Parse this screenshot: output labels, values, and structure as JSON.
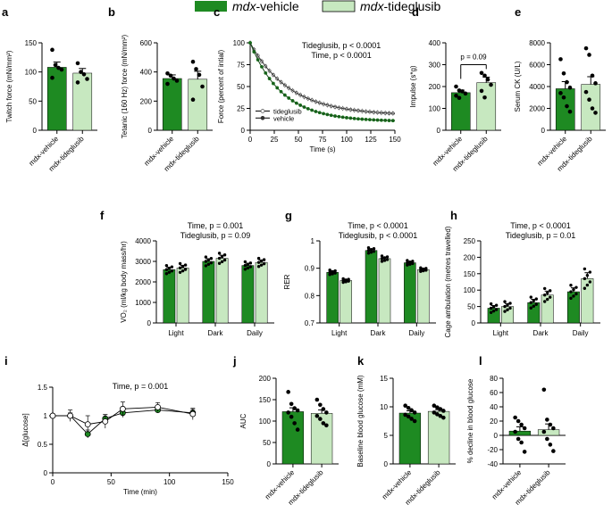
{
  "colors": {
    "vehicle": "#1e8a22",
    "tideglusib": "#c7e8c0",
    "dark_green": "#17731b",
    "axis": "#000000"
  },
  "legend": {
    "vehicle_prefix": "mdx",
    "vehicle_suffix": "-vehicle",
    "tideglusib_prefix": "mdx",
    "tideglusib_suffix": "-tideglusib"
  },
  "chart_data": [
    {
      "id": "a",
      "type": "bar",
      "panel_label": "a",
      "title": "",
      "ylabel": "Twitch force (mN/mm²)",
      "categories": [
        "mdx-vehicle",
        "mdx-tideglusib"
      ],
      "values": [
        108,
        98
      ],
      "errors": [
        9,
        8
      ],
      "ylim": [
        0,
        150
      ],
      "yticks": [
        0,
        50,
        100,
        150
      ],
      "points": [
        [
          138,
          112,
          107,
          104,
          90
        ],
        [
          115,
          100,
          96,
          88,
          82
        ]
      ]
    },
    {
      "id": "b",
      "type": "bar",
      "panel_label": "b",
      "title": "",
      "ylabel": "Tetanic (160 Hz) force (mN/mm²)",
      "categories": [
        "mdx-vehicle",
        "mdx-tideglusib"
      ],
      "values": [
        355,
        350
      ],
      "errors": [
        25,
        55
      ],
      "ylim": [
        0,
        600
      ],
      "yticks": [
        0,
        200,
        400,
        600
      ],
      "points": [
        [
          390,
          375,
          355,
          340,
          318
        ],
        [
          470,
          420,
          380,
          300,
          210
        ]
      ]
    },
    {
      "id": "c",
      "type": "line",
      "panel_label": "c",
      "title": "Tideglusib, p < 0.0001",
      "subtitle": "Time, p < 0.0001",
      "xlabel": "Time (s)",
      "ylabel": "Force (percent of intial)",
      "xlim": [
        0,
        150
      ],
      "ylim": [
        0,
        100
      ],
      "xticks": [
        0,
        25,
        50,
        75,
        100,
        125,
        150
      ],
      "yticks": [
        0,
        25,
        50,
        75,
        100
      ],
      "legend_position": "bottom-left",
      "series": [
        {
          "name": "tideglusib",
          "tau": 41,
          "floor": 17,
          "err": 2.8
        },
        {
          "name": "vehicle",
          "tau": 33,
          "floor": 10,
          "err": 1.5
        }
      ]
    },
    {
      "id": "d",
      "type": "bar",
      "panel_label": "d",
      "title": "",
      "ylabel": "Impulse (s*g)",
      "categories": [
        "mdx-vehicle",
        "mdx-tideglusib"
      ],
      "values": [
        172,
        218
      ],
      "errors": [
        12,
        25
      ],
      "ylim": [
        0,
        400
      ],
      "yticks": [
        0,
        100,
        200,
        300,
        400
      ],
      "points": [
        [
          200,
          182,
          178,
          168,
          158,
          148
        ],
        [
          262,
          250,
          232,
          208,
          180,
          150
        ]
      ],
      "annotation": "p = 0.09"
    },
    {
      "id": "e",
      "type": "bar",
      "panel_label": "e",
      "title": "",
      "ylabel": "Serum CK (U/L)",
      "categories": [
        "mdx-vehicle",
        "mdx-tideglusib"
      ],
      "values": [
        3800,
        4200
      ],
      "errors": [
        650,
        700
      ],
      "ylim": [
        0,
        8000
      ],
      "yticks": [
        0,
        2000,
        4000,
        6000,
        8000
      ],
      "points": [
        [
          6500,
          5200,
          4400,
          3900,
          3400,
          3000,
          2200,
          1700
        ],
        [
          7500,
          6900,
          5000,
          4300,
          3500,
          2800,
          2000,
          1600
        ]
      ]
    },
    {
      "id": "f",
      "type": "bar",
      "panel_label": "f",
      "title": "Time, p = 0.001",
      "subtitle": "Tideglusib, p = 0.09",
      "ylabel": "VO₂ (ml/kg body mass/hr)",
      "categories": [
        "Light",
        "Dark",
        "Daily"
      ],
      "series": [
        {
          "name": "mdx-vehicle",
          "values": [
            2600,
            3000,
            2800
          ],
          "errors": [
            120,
            130,
            110
          ]
        },
        {
          "name": "mdx-tideglusib",
          "values": [
            2680,
            3150,
            2950
          ],
          "errors": [
            130,
            150,
            120
          ]
        }
      ],
      "ylim": [
        0,
        4000
      ],
      "yticks": [
        0,
        1000,
        2000,
        3000,
        4000
      ]
    },
    {
      "id": "g",
      "type": "bar",
      "panel_label": "g",
      "title": "Time, p < 0.0001",
      "subtitle": "Tideglusib, p < 0.0001",
      "ylabel": "RER",
      "categories": [
        "Light",
        "Dark",
        "Daily"
      ],
      "series": [
        {
          "name": "mdx-vehicle",
          "values": [
            0.885,
            0.965,
            0.92
          ],
          "errors": [
            0.005,
            0.006,
            0.005
          ]
        },
        {
          "name": "mdx-tideglusib",
          "values": [
            0.855,
            0.935,
            0.895
          ],
          "errors": [
            0.004,
            0.006,
            0.004
          ]
        }
      ],
      "ylim": [
        0.7,
        1.0
      ],
      "yticks": [
        0.7,
        0.8,
        0.9,
        1.0
      ]
    },
    {
      "id": "h",
      "type": "bar",
      "panel_label": "h",
      "title": "Time, p < 0.0001",
      "subtitle": "Tideglusib, p = 0.01",
      "ylabel": "Cage ambulation (metres travelled)",
      "categories": [
        "Light",
        "Dark",
        "Daily"
      ],
      "series": [
        {
          "name": "mdx-vehicle",
          "values": [
            45,
            62,
            95
          ],
          "errors": [
            8,
            10,
            12
          ]
        },
        {
          "name": "mdx-tideglusib",
          "values": [
            50,
            85,
            135
          ],
          "errors": [
            9,
            12,
            18
          ]
        }
      ],
      "ylim": [
        0,
        250
      ],
      "yticks": [
        0,
        50,
        100,
        150,
        200,
        250
      ]
    },
    {
      "id": "i",
      "type": "line",
      "panel_label": "i",
      "title": "Time, p = 0.001",
      "xlabel": "Time (min)",
      "ylabel": "Δ[glucose]",
      "xlim": [
        0,
        150
      ],
      "ylim": [
        0,
        1.5
      ],
      "xticks": [
        0,
        50,
        100,
        150
      ],
      "yticks": [
        0.0,
        0.5,
        1.0,
        1.5
      ],
      "series": [
        {
          "name": "mdx-vehicle",
          "x": [
            0,
            15,
            30,
            45,
            60,
            90,
            120
          ],
          "y": [
            1.0,
            1.0,
            0.68,
            0.95,
            1.05,
            1.1,
            1.05
          ],
          "err": [
            0.02,
            0.05,
            0.07,
            0.07,
            0.08,
            0.05,
            0.06
          ]
        },
        {
          "name": "mdx-tideglusib",
          "x": [
            0,
            15,
            30,
            45,
            60,
            90,
            120
          ],
          "y": [
            1.0,
            1.0,
            0.85,
            0.9,
            1.12,
            1.15,
            1.03
          ],
          "err": [
            0.02,
            0.1,
            0.15,
            0.12,
            0.12,
            0.08,
            0.1
          ]
        }
      ]
    },
    {
      "id": "j",
      "type": "bar",
      "panel_label": "j",
      "title": "",
      "ylabel": "AUC",
      "categories": [
        "mdx-vehicle",
        "mdx-tideglusib"
      ],
      "values": [
        122,
        118
      ],
      "errors": [
        9,
        8
      ],
      "ylim": [
        0,
        200
      ],
      "yticks": [
        0,
        50,
        100,
        150,
        200
      ],
      "points": [
        [
          168,
          140,
          130,
          125,
          120,
          110,
          95,
          80
        ],
        [
          150,
          138,
          128,
          120,
          112,
          105,
          95,
          90
        ]
      ]
    },
    {
      "id": "k",
      "type": "bar",
      "panel_label": "k",
      "title": "",
      "ylabel": "Baseline blood glucose (mM)",
      "categories": [
        "mdx-vehicle",
        "mdx-tideglusib"
      ],
      "values": [
        8.9,
        9.2
      ],
      "errors": [
        0.4,
        0.3
      ],
      "ylim": [
        0,
        15
      ],
      "yticks": [
        0,
        5,
        10,
        15
      ],
      "points": [
        [
          10.2,
          9.8,
          9.4,
          9.0,
          8.6,
          8.3,
          7.9,
          7.5
        ],
        [
          10.2,
          9.9,
          9.6,
          9.3,
          9.0,
          8.7,
          8.4,
          8.1
        ]
      ]
    },
    {
      "id": "l",
      "type": "bar",
      "panel_label": "l",
      "title": "",
      "ylabel": "% decline in blood glucose",
      "categories": [
        "mdx-vehicle",
        "mdx-tideglusib"
      ],
      "values": [
        6,
        8
      ],
      "errors": [
        6,
        8
      ],
      "ylim": [
        -40,
        80
      ],
      "yticks": [
        -40,
        -20,
        0,
        20,
        40,
        60,
        80
      ],
      "points": [
        [
          25,
          20,
          15,
          10,
          5,
          -5,
          -10,
          -23
        ],
        [
          64,
          22,
          15,
          10,
          5,
          -5,
          -13,
          -22
        ]
      ]
    }
  ]
}
